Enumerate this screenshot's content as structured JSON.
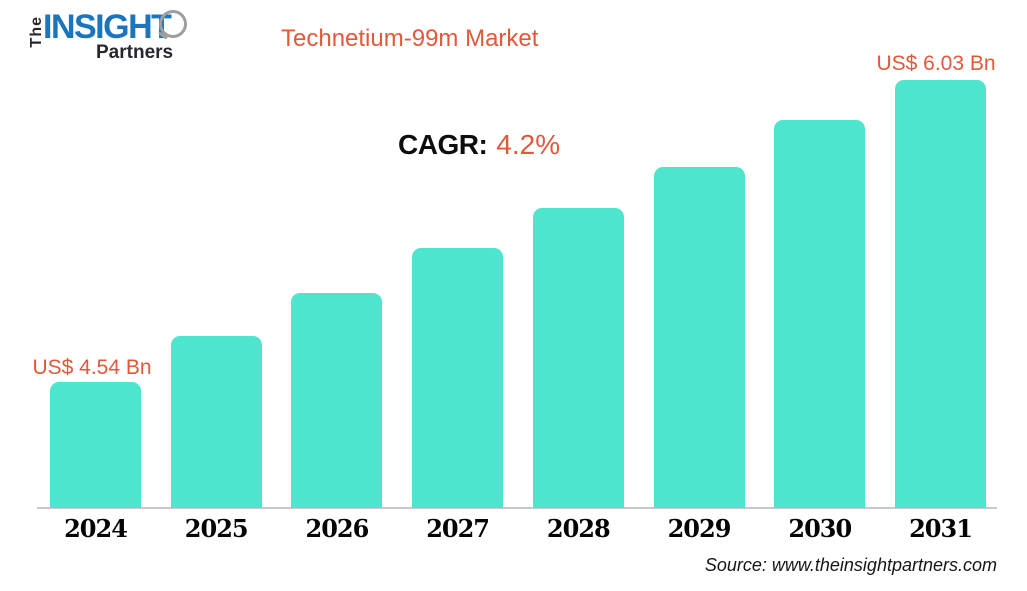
{
  "logo": {
    "the": "The",
    "insight": "INSIGHT",
    "partners": "Partners"
  },
  "cagr": {
    "label": "CAGR:",
    "value": "4.2%"
  },
  "chart_data": {
    "type": "bar",
    "title": "Technetium-99m Market",
    "categories": [
      "2024",
      "2025",
      "2026",
      "2027",
      "2028",
      "2029",
      "2030",
      "2031"
    ],
    "values": [
      4.54,
      4.77,
      4.98,
      5.2,
      5.4,
      5.6,
      5.83,
      6.03
    ],
    "unit": "US$ Bn",
    "cagr": "4.2%",
    "data_labels": {
      "first": "US$ 4.54 Bn",
      "last": "US$ 6.03 Bn"
    },
    "xlabel": "",
    "ylabel": "",
    "ylim": [
      3.92,
      6.45
    ],
    "grid": false,
    "legend": false,
    "bar_color": "#4DE5CD"
  },
  "colors": {
    "accent": "#E2583B",
    "bar_teal": "#4DE5CD",
    "logo_blue": "#1B75BC",
    "logo_dark": "#28262F",
    "axis_gray": "#C9C9C9"
  },
  "footer": {
    "source": "Source: www.theinsightpartners.com"
  }
}
